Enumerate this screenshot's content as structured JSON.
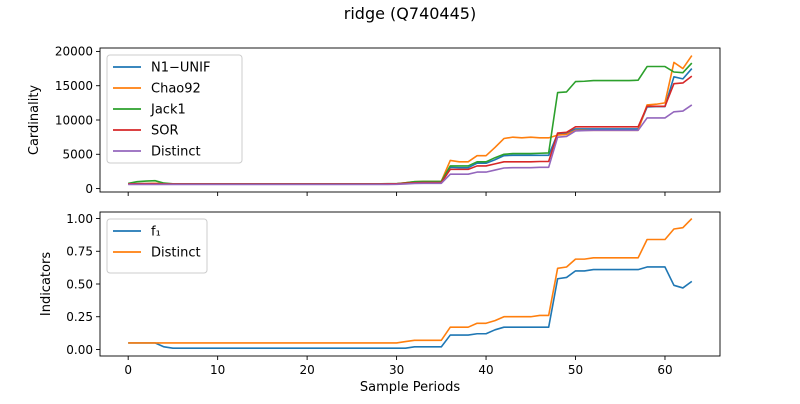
{
  "figure": {
    "title": "ridge (Q740445)"
  },
  "colors": {
    "blue": "#1f77b4",
    "orange": "#ff7f0e",
    "green": "#2ca02c",
    "red": "#d62728",
    "purple": "#9467bd"
  },
  "chart_data": [
    {
      "type": "line",
      "title": "ridge (Q740445)",
      "xlabel": "",
      "ylabel": "Cardinality",
      "xlim": [
        -3.15,
        66.15
      ],
      "ylim": [
        -500,
        20500
      ],
      "xticks": [
        0,
        10,
        20,
        30,
        40,
        50,
        60
      ],
      "xtick_labels_visible": false,
      "yticks": [
        0,
        5000,
        10000,
        15000,
        20000
      ],
      "ytick_labels": [
        "0",
        "5000",
        "10000",
        "15000",
        "20000"
      ],
      "grid": false,
      "legend": "upper-left",
      "x": [
        0,
        1,
        2,
        3,
        4,
        5,
        6,
        7,
        8,
        9,
        10,
        11,
        12,
        13,
        14,
        15,
        16,
        17,
        18,
        19,
        20,
        21,
        22,
        23,
        24,
        25,
        26,
        27,
        28,
        29,
        30,
        31,
        32,
        33,
        34,
        35,
        36,
        37,
        38,
        39,
        40,
        41,
        42,
        43,
        44,
        45,
        46,
        47,
        48,
        49,
        50,
        51,
        52,
        53,
        54,
        55,
        56,
        57,
        58,
        59,
        60,
        61,
        62,
        63
      ],
      "series": [
        {
          "name": "N1−UNIF",
          "color": "#1f77b4",
          "values": [
            700,
            720,
            740,
            760,
            700,
            680,
            680,
            680,
            680,
            680,
            680,
            680,
            680,
            680,
            680,
            680,
            680,
            680,
            680,
            680,
            680,
            680,
            680,
            680,
            680,
            680,
            680,
            680,
            680,
            690,
            700,
            800,
            900,
            950,
            950,
            950,
            3100,
            3050,
            3050,
            3700,
            3700,
            4200,
            4800,
            4850,
            4850,
            4850,
            4850,
            4850,
            8000,
            8100,
            8700,
            8700,
            8700,
            8700,
            8700,
            8700,
            8700,
            8700,
            11900,
            11950,
            11950,
            16300,
            16000,
            17500
          ]
        },
        {
          "name": "Chao92",
          "color": "#ff7f0e",
          "values": [
            700,
            720,
            740,
            760,
            700,
            680,
            680,
            680,
            680,
            680,
            680,
            680,
            680,
            680,
            680,
            680,
            680,
            680,
            680,
            680,
            680,
            680,
            680,
            680,
            680,
            680,
            680,
            680,
            680,
            690,
            700,
            850,
            1000,
            1050,
            1050,
            1050,
            4100,
            3900,
            3900,
            4800,
            4800,
            6000,
            7300,
            7500,
            7400,
            7500,
            7400,
            7400,
            7800,
            7900,
            8500,
            8500,
            8500,
            8500,
            8500,
            8500,
            8500,
            8500,
            12200,
            12300,
            12500,
            18400,
            17500,
            19400
          ]
        },
        {
          "name": "Jack1",
          "color": "#2ca02c",
          "values": [
            750,
            1000,
            1100,
            1150,
            800,
            700,
            700,
            700,
            700,
            700,
            700,
            700,
            700,
            700,
            700,
            700,
            700,
            700,
            700,
            700,
            700,
            700,
            700,
            700,
            700,
            700,
            700,
            700,
            700,
            710,
            720,
            850,
            1000,
            1050,
            1050,
            1050,
            3300,
            3300,
            3300,
            3900,
            3900,
            4500,
            5000,
            5100,
            5100,
            5100,
            5150,
            5200,
            14000,
            14100,
            15600,
            15650,
            15750,
            15750,
            15750,
            15750,
            15750,
            15800,
            17800,
            17800,
            17800,
            17000,
            16900,
            18300
          ]
        },
        {
          "name": "SOR",
          "color": "#d62728",
          "values": [
            700,
            700,
            700,
            700,
            680,
            680,
            680,
            680,
            680,
            680,
            680,
            680,
            680,
            680,
            680,
            680,
            680,
            680,
            680,
            680,
            680,
            680,
            680,
            680,
            680,
            680,
            680,
            680,
            680,
            690,
            700,
            780,
            850,
            880,
            880,
            880,
            2800,
            2800,
            2800,
            3300,
            3300,
            3600,
            3900,
            3900,
            3900,
            3900,
            3950,
            3950,
            8100,
            8200,
            9000,
            9000,
            9000,
            9000,
            9000,
            9000,
            9000,
            9000,
            12000,
            12000,
            12000,
            15300,
            15400,
            16400
          ]
        },
        {
          "name": "Distinct",
          "color": "#9467bd",
          "values": [
            600,
            600,
            600,
            600,
            600,
            600,
            600,
            600,
            600,
            600,
            600,
            600,
            600,
            600,
            600,
            600,
            600,
            600,
            600,
            600,
            600,
            600,
            600,
            600,
            600,
            600,
            600,
            600,
            600,
            610,
            620,
            680,
            750,
            760,
            760,
            760,
            2100,
            2100,
            2100,
            2400,
            2400,
            2700,
            3000,
            3050,
            3050,
            3050,
            3100,
            3100,
            7500,
            7600,
            8400,
            8450,
            8500,
            8500,
            8500,
            8500,
            8500,
            8500,
            10300,
            10300,
            10300,
            11200,
            11300,
            12200
          ]
        }
      ]
    },
    {
      "type": "line",
      "title": "",
      "xlabel": "Sample Periods",
      "ylabel": "Indicators",
      "xlim": [
        -3.15,
        66.15
      ],
      "ylim": [
        -0.05,
        1.05
      ],
      "xticks": [
        0,
        10,
        20,
        30,
        40,
        50,
        60
      ],
      "xtick_labels": [
        "0",
        "10",
        "20",
        "30",
        "40",
        "50",
        "60"
      ],
      "yticks": [
        0,
        0.25,
        0.5,
        0.75,
        1.0
      ],
      "ytick_labels": [
        "0.00",
        "0.25",
        "0.50",
        "0.75",
        "1.00"
      ],
      "grid": false,
      "legend": "upper-left",
      "x": [
        0,
        1,
        2,
        3,
        4,
        5,
        6,
        7,
        8,
        9,
        10,
        11,
        12,
        13,
        14,
        15,
        16,
        17,
        18,
        19,
        20,
        21,
        22,
        23,
        24,
        25,
        26,
        27,
        28,
        29,
        30,
        31,
        32,
        33,
        34,
        35,
        36,
        37,
        38,
        39,
        40,
        41,
        42,
        43,
        44,
        45,
        46,
        47,
        48,
        49,
        50,
        51,
        52,
        53,
        54,
        55,
        56,
        57,
        58,
        59,
        60,
        61,
        62,
        63
      ],
      "series": [
        {
          "name": "f₁",
          "color": "#1f77b4",
          "values": [
            0.05,
            0.05,
            0.05,
            0.05,
            0.02,
            0.01,
            0.01,
            0.01,
            0.01,
            0.01,
            0.01,
            0.01,
            0.01,
            0.01,
            0.01,
            0.01,
            0.01,
            0.01,
            0.01,
            0.01,
            0.01,
            0.01,
            0.01,
            0.01,
            0.01,
            0.01,
            0.01,
            0.01,
            0.01,
            0.01,
            0.01,
            0.01,
            0.02,
            0.02,
            0.02,
            0.02,
            0.11,
            0.11,
            0.11,
            0.12,
            0.12,
            0.15,
            0.17,
            0.17,
            0.17,
            0.17,
            0.17,
            0.17,
            0.54,
            0.55,
            0.6,
            0.6,
            0.61,
            0.61,
            0.61,
            0.61,
            0.61,
            0.61,
            0.63,
            0.63,
            0.63,
            0.49,
            0.47,
            0.52
          ]
        },
        {
          "name": "Distinct",
          "color": "#ff7f0e",
          "values": [
            0.05,
            0.05,
            0.05,
            0.05,
            0.05,
            0.05,
            0.05,
            0.05,
            0.05,
            0.05,
            0.05,
            0.05,
            0.05,
            0.05,
            0.05,
            0.05,
            0.05,
            0.05,
            0.05,
            0.05,
            0.05,
            0.05,
            0.05,
            0.05,
            0.05,
            0.05,
            0.05,
            0.05,
            0.05,
            0.05,
            0.05,
            0.06,
            0.07,
            0.07,
            0.07,
            0.07,
            0.17,
            0.17,
            0.17,
            0.2,
            0.2,
            0.22,
            0.25,
            0.25,
            0.25,
            0.25,
            0.26,
            0.26,
            0.62,
            0.63,
            0.69,
            0.69,
            0.7,
            0.7,
            0.7,
            0.7,
            0.7,
            0.7,
            0.84,
            0.84,
            0.84,
            0.92,
            0.93,
            1.0
          ]
        }
      ]
    }
  ]
}
